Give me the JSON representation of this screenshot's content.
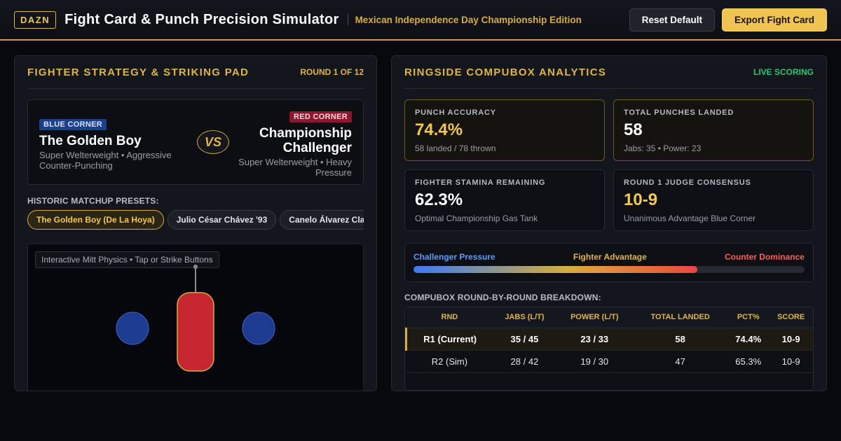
{
  "header": {
    "logo": "DAZN",
    "title": "Fight Card & Punch Precision Simulator",
    "edition": "Mexican Independence Day Championship Edition",
    "reset_label": "Reset Default",
    "export_label": "Export Fight Card"
  },
  "left_panel": {
    "title": "FIGHTER STRATEGY & STRIKING PAD",
    "round_info": "ROUND 1 OF 12",
    "blue": {
      "badge": "BLUE CORNER",
      "name": "The Golden Boy",
      "desc": "Super Welterweight • Aggressive Counter-Punching"
    },
    "vs": "VS",
    "red": {
      "badge": "RED CORNER",
      "name": "Championship Challenger",
      "desc": "Super Welterweight • Heavy Pressure"
    },
    "presets_label": "HISTORIC MATCHUP PRESETS:",
    "presets": [
      "The Golden Boy (De La Hoya)",
      "Julio César Chávez '93",
      "Canelo Álvarez Classic"
    ],
    "physics_tag": "Interactive Mitt Physics • Tap or Strike Buttons"
  },
  "right_panel": {
    "title": "RINGSIDE COMPUBOX ANALYTICS",
    "live": "LIVE SCORING",
    "stats": [
      {
        "label": "PUNCH ACCURACY",
        "value": "74.4%",
        "sub": "58 landed / 78 thrown"
      },
      {
        "label": "TOTAL PUNCHES LANDED",
        "value": "58",
        "sub": "Jabs: 35 • Power: 23"
      },
      {
        "label": "FIGHTER STAMINA REMAINING",
        "value": "62.3%",
        "sub": "Optimal Championship Gas Tank"
      },
      {
        "label": "ROUND 1 JUDGE CONSENSUS",
        "value": "10-9",
        "sub": "Unanimous Advantage Blue Corner"
      }
    ],
    "meter": {
      "left": "Challenger Pressure",
      "mid": "Fighter Advantage",
      "right": "Counter Dominance",
      "level_percent": 72.5
    },
    "breakdown_label": "COMPUBOX ROUND-BY-ROUND BREAKDOWN:",
    "table": {
      "headers": [
        "RND",
        "JABS (L/T)",
        "POWER (L/T)",
        "TOTAL LANDED",
        "PCT%",
        "SCORE"
      ],
      "rows": [
        [
          "R1 (Current)",
          "35 / 45",
          "23 / 33",
          "58",
          "74.4%",
          "10-9"
        ],
        [
          "R2 (Sim)",
          "28 / 42",
          "19 / 30",
          "47",
          "65.3%",
          "10-9"
        ]
      ]
    }
  }
}
